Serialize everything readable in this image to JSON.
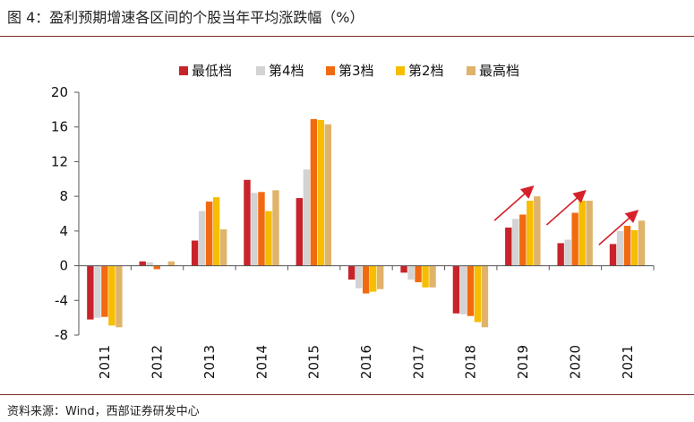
{
  "figure": {
    "title": "图 4：盈利预期增速各区间的个股当年平均涨跌幅（%）",
    "source": "资料来源：Wind，西部证券研发中心"
  },
  "colors": {
    "series": [
      "#c8222b",
      "#d3d3d3",
      "#f26a0f",
      "#f7bd00",
      "#e0b36a"
    ],
    "arrow": "#d6212a",
    "rule": "#7f2a2a",
    "axis": "#555555"
  },
  "chart_data": {
    "type": "bar",
    "title": "盈利预期增速各区间的个股当年平均涨跌幅（%）",
    "xlabel": "",
    "ylabel": "",
    "ylim": [
      -8,
      20
    ],
    "yticks": [
      -8,
      -4,
      0,
      4,
      8,
      12,
      16,
      20
    ],
    "legend_position": "top",
    "categories": [
      "2011",
      "2012",
      "2013",
      "2014",
      "2015",
      "2016",
      "2017",
      "2018",
      "2019",
      "2020",
      "2021"
    ],
    "series": [
      {
        "name": "最低档",
        "values": [
          -6.2,
          0.5,
          2.9,
          9.9,
          7.8,
          -1.6,
          -0.8,
          -5.5,
          4.4,
          2.6,
          2.5
        ]
      },
      {
        "name": "第4档",
        "values": [
          -6.0,
          0.4,
          6.3,
          8.4,
          11.1,
          -2.6,
          -1.6,
          -5.6,
          5.4,
          3.0,
          4.0
        ]
      },
      {
        "name": "第3档",
        "values": [
          -5.9,
          -0.4,
          7.4,
          8.5,
          16.9,
          -3.2,
          -1.9,
          -5.8,
          5.9,
          6.1,
          4.6
        ]
      },
      {
        "name": "第2档",
        "values": [
          -6.9,
          0.0,
          7.9,
          6.3,
          16.8,
          -3.0,
          -2.5,
          -6.5,
          7.5,
          7.5,
          4.1
        ]
      },
      {
        "name": "最高档",
        "values": [
          -7.1,
          0.5,
          4.2,
          8.7,
          16.3,
          -2.7,
          -2.5,
          -7.1,
          8.0,
          7.5,
          5.2
        ]
      }
    ],
    "annotations": [
      {
        "type": "arrow",
        "category": "2019",
        "note": "upward trend"
      },
      {
        "type": "arrow",
        "category": "2020",
        "note": "upward trend"
      },
      {
        "type": "arrow",
        "category": "2021",
        "note": "upward trend"
      }
    ]
  }
}
